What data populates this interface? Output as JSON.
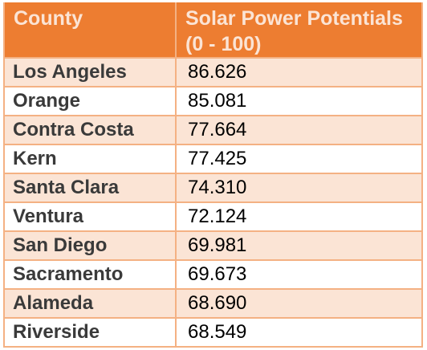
{
  "chart_data": {
    "type": "table",
    "columns": [
      "County",
      "Solar Power Potentials (0 - 100)"
    ],
    "rows": [
      {
        "county": "Los Angeles",
        "value": "86.626"
      },
      {
        "county": "Orange",
        "value": "85.081"
      },
      {
        "county": "Contra Costa",
        "value": "77.664"
      },
      {
        "county": "Kern",
        "value": "77.425"
      },
      {
        "county": "Santa Clara",
        "value": "74.310"
      },
      {
        "county": "Ventura",
        "value": "72.124"
      },
      {
        "county": "San Diego",
        "value": "69.981"
      },
      {
        "county": "Sacramento",
        "value": "69.673"
      },
      {
        "county": "Alameda",
        "value": "68.690"
      },
      {
        "county": "Riverside",
        "value": "68.549"
      }
    ]
  },
  "colors": {
    "header_bg": "#ED7D31",
    "header_text": "#FBE4D5",
    "band": "#FBE4D5",
    "border": "#F4B183"
  }
}
